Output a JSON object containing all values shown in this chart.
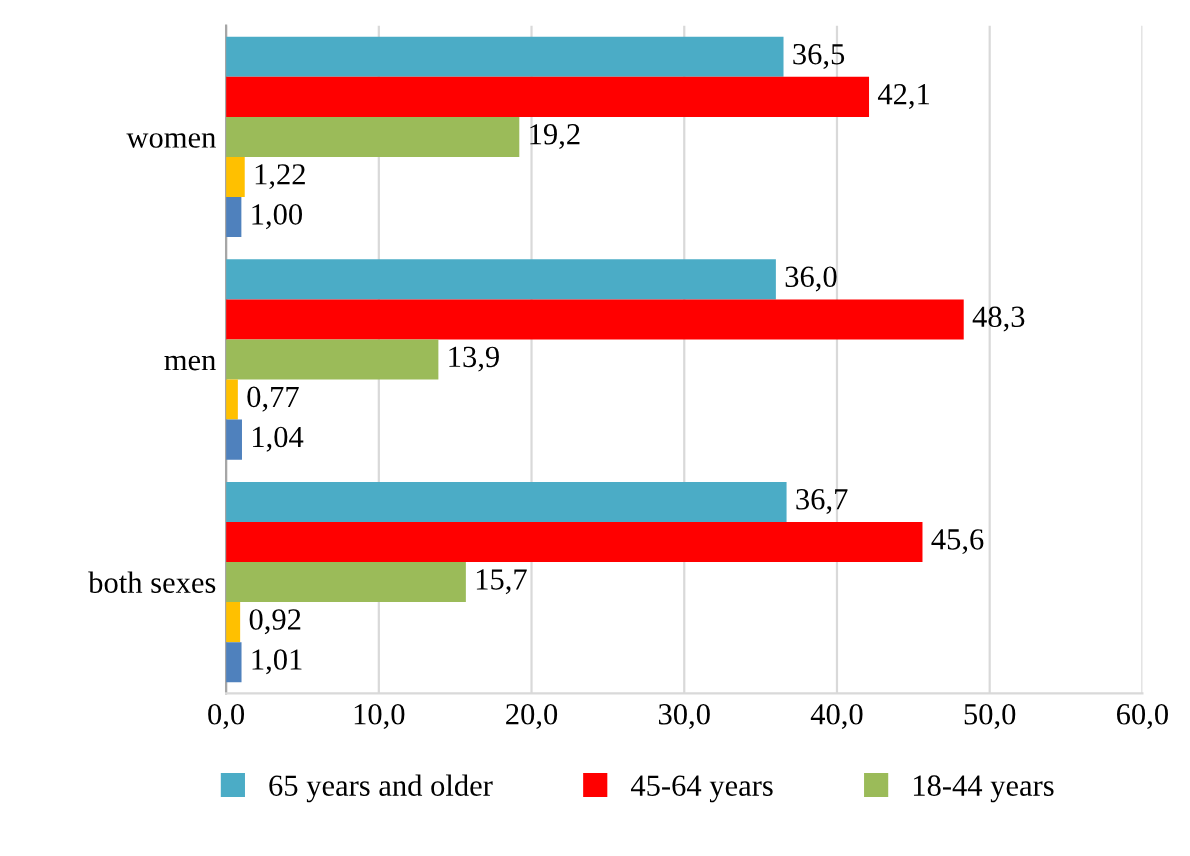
{
  "chart_data": {
    "type": "bar",
    "orientation": "horizontal",
    "categories": [
      "women",
      "men",
      "both sexes"
    ],
    "series": [
      {
        "name": "65 years and older",
        "color": "#4bacc6",
        "values": [
          36.5,
          36.0,
          36.7
        ],
        "value_labels": [
          "36,5",
          "36,0",
          "36,7"
        ]
      },
      {
        "name": "45-64 years",
        "color": "#ff0000",
        "values": [
          42.1,
          48.3,
          45.6
        ],
        "value_labels": [
          "42,1",
          "48,3",
          "45,6"
        ]
      },
      {
        "name": "18-44 years",
        "color": "#9bbb59",
        "values": [
          19.2,
          13.9,
          15.7
        ],
        "value_labels": [
          "19,2",
          "13,9",
          "15,7"
        ]
      },
      {
        "color": "#ffc000",
        "values": [
          1.22,
          0.77,
          0.92
        ],
        "value_labels": [
          "1,22",
          "0,77",
          "0,92"
        ]
      },
      {
        "color": "#4f81bd",
        "values": [
          1.0,
          1.04,
          1.01
        ],
        "value_labels": [
          "1,00",
          "1,04",
          "1,01"
        ]
      }
    ],
    "xlim": [
      0,
      60
    ],
    "xticks": [
      {
        "value": 0,
        "label": "0,0"
      },
      {
        "value": 10,
        "label": "10,0"
      },
      {
        "value": 20,
        "label": "20,0"
      },
      {
        "value": 30,
        "label": "30,0"
      },
      {
        "value": 40,
        "label": "40,0"
      },
      {
        "value": 50,
        "label": "50,0"
      },
      {
        "value": 60,
        "label": "60,0"
      }
    ],
    "grid": "x",
    "legend": "bottom"
  }
}
